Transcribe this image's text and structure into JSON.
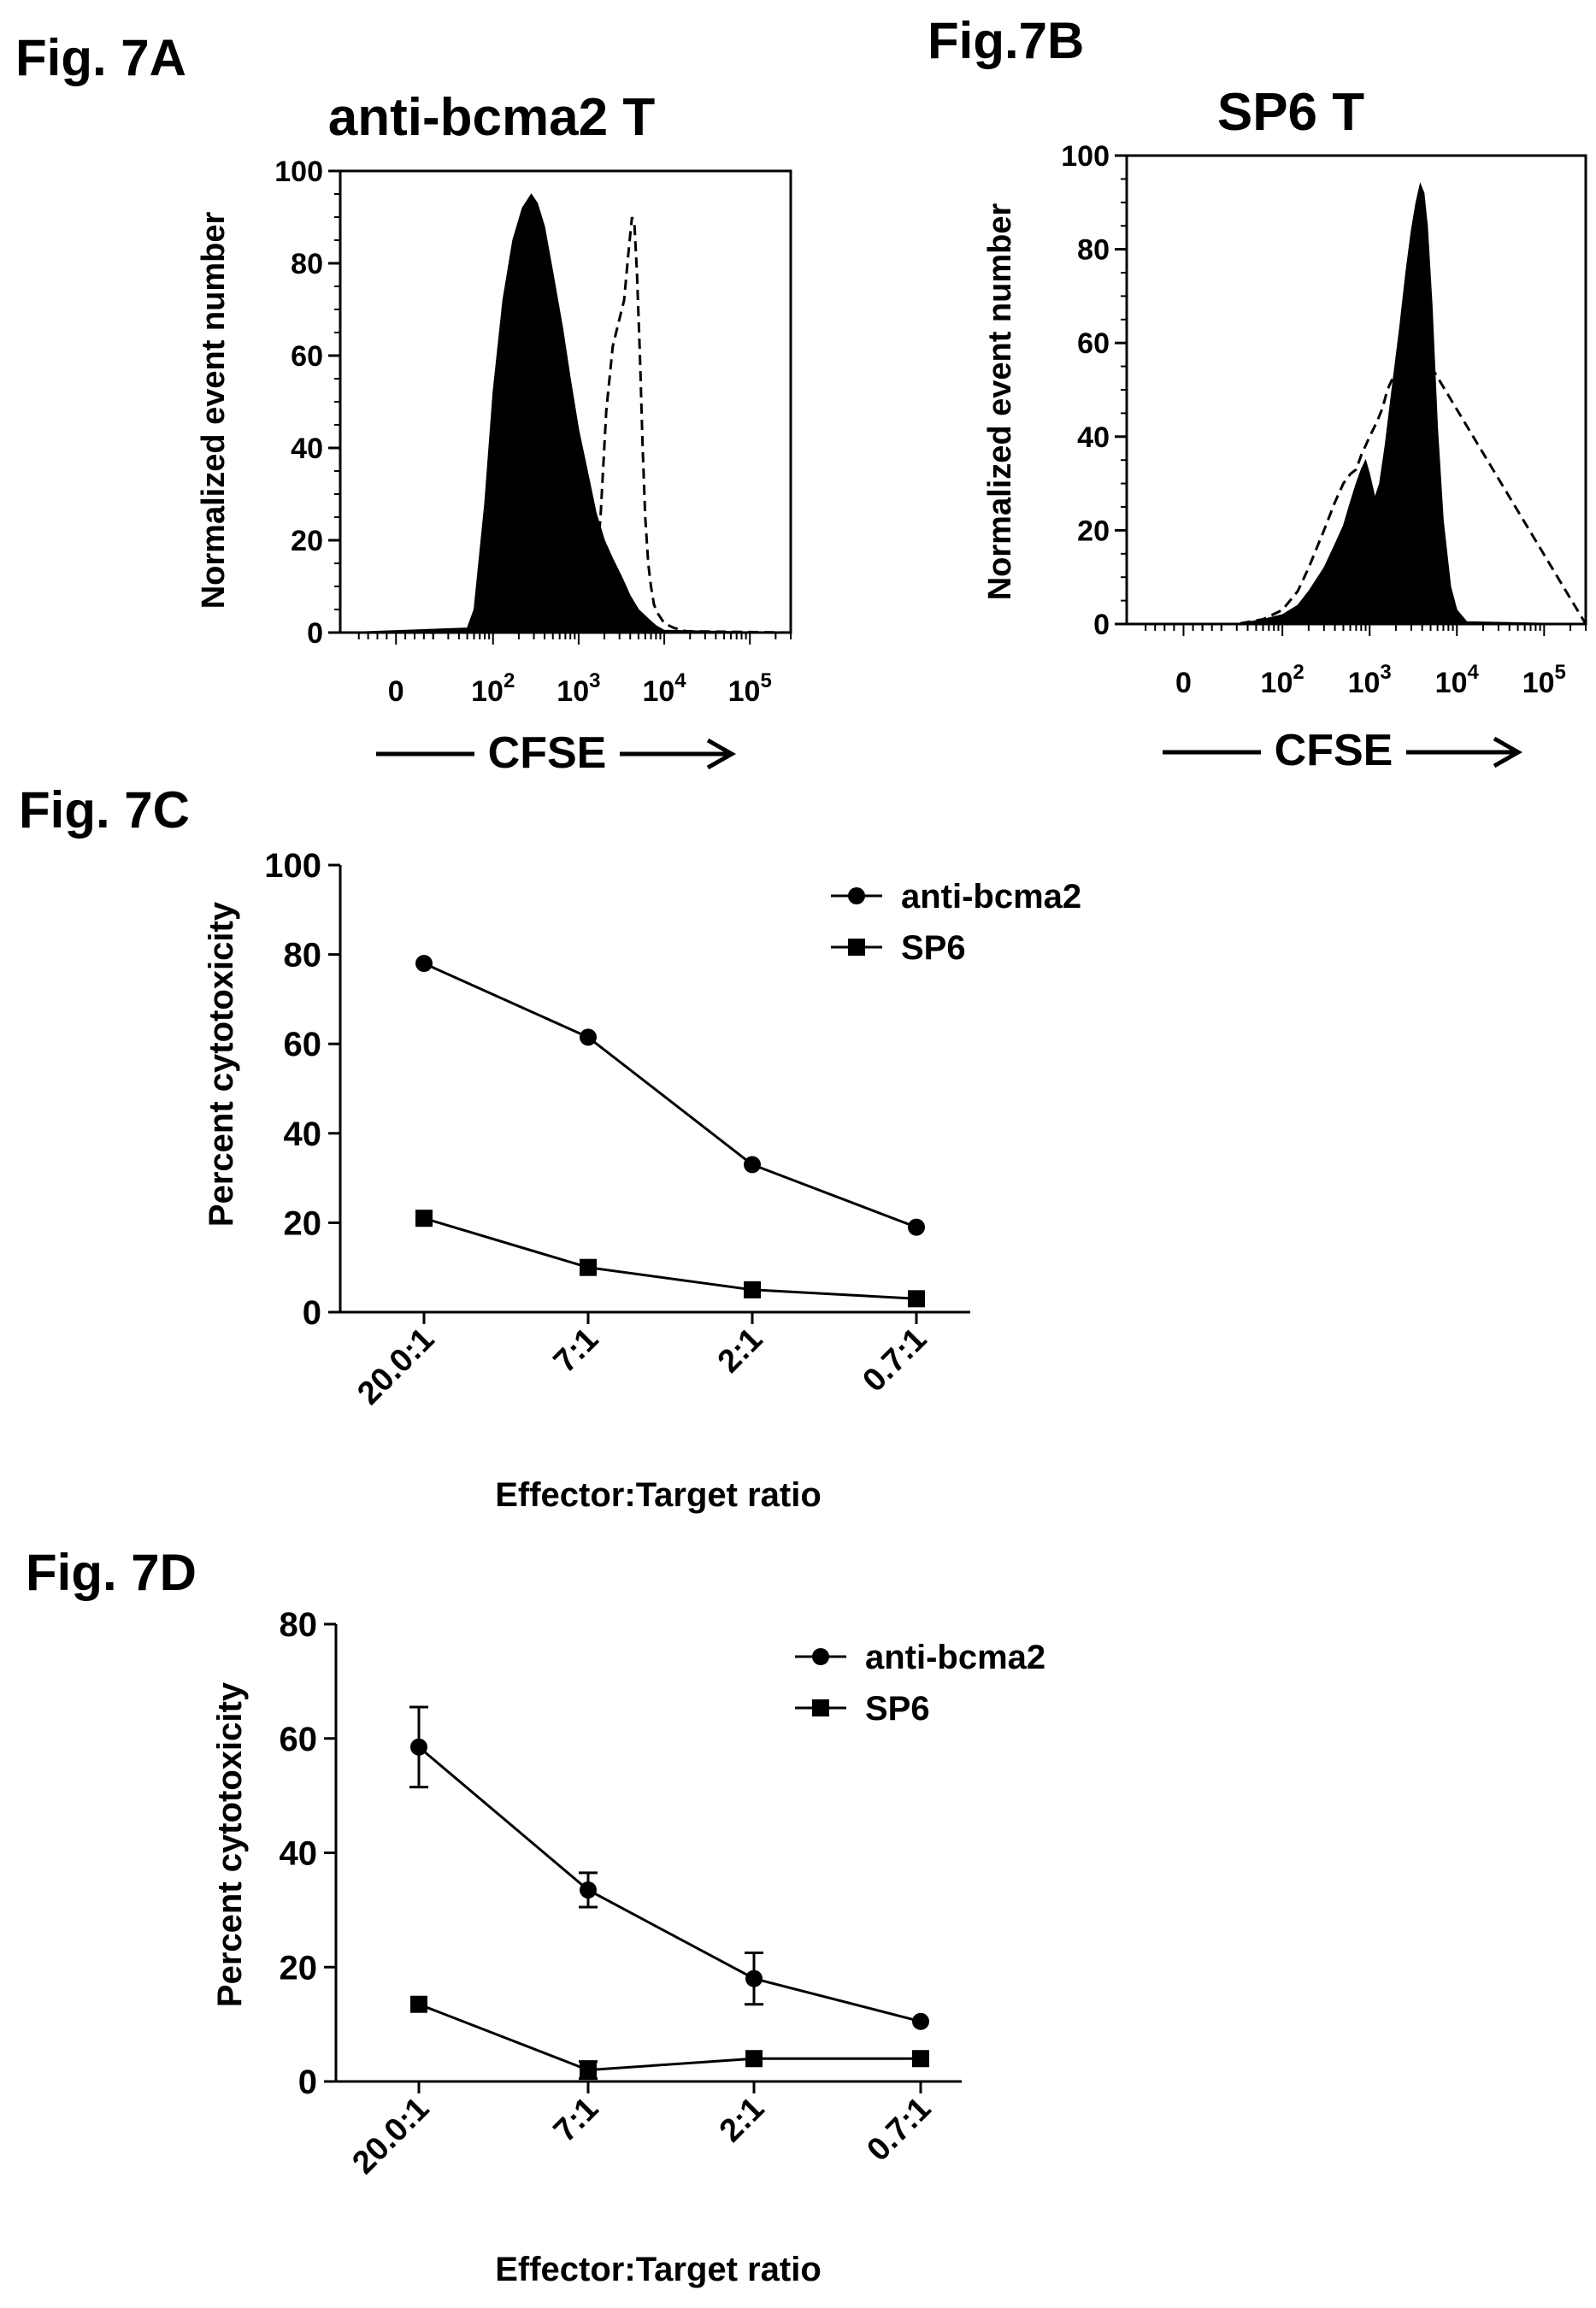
{
  "panels": [
    {
      "label": "Fig. 7A"
    },
    {
      "label": "Fig.7B"
    },
    {
      "label": "Fig. 7C"
    },
    {
      "label": "Fig. 7D"
    }
  ],
  "colors": {
    "ink": "#000000",
    "background": "#ffffff"
  },
  "chart_data": [
    {
      "id": "A",
      "type": "area",
      "title": "anti-bcma2 T",
      "xlabel": "CFSE",
      "ylabel": "Normalized event number",
      "ylim": [
        0,
        100
      ],
      "yticks": [
        0,
        20,
        40,
        60,
        80,
        100
      ],
      "xscale": "log",
      "xticks": [
        {
          "value": 0,
          "label": "0"
        },
        {
          "value": 100,
          "base": "10",
          "exp": "2"
        },
        {
          "value": 1000,
          "base": "10",
          "exp": "3"
        },
        {
          "value": 10000,
          "base": "10",
          "exp": "4"
        },
        {
          "value": 100000,
          "base": "10",
          "exp": "5"
        }
      ],
      "xlim": [
        -30,
        300000
      ],
      "series": [
        {
          "style": "filled",
          "color": "#000000",
          "x": [
            -30,
            50,
            60,
            80,
            100,
            130,
            170,
            220,
            280,
            330,
            400,
            500,
            650,
            800,
            1000,
            1300,
            1600,
            2000,
            2500,
            3200,
            4000,
            5000,
            6500,
            8000,
            10000,
            300000
          ],
          "y": [
            0,
            1,
            5,
            28,
            52,
            72,
            85,
            92,
            95,
            93,
            88,
            78,
            66,
            55,
            44,
            34,
            26,
            20,
            16,
            12,
            8,
            5,
            3,
            1.5,
            0.5,
            0
          ]
        },
        {
          "style": "dashed",
          "color": "#000000",
          "x": [
            -30,
            800,
            1200,
            1500,
            1800,
            2100,
            2500,
            3000,
            3400,
            3800,
            4200,
            4500,
            4800,
            5200,
            5600,
            6000,
            6500,
            7000,
            7600,
            8500,
            10000,
            13000,
            18000,
            300000
          ],
          "y": [
            0,
            0,
            2,
            8,
            25,
            48,
            62,
            68,
            72,
            82,
            90,
            88,
            78,
            60,
            40,
            25,
            15,
            10,
            6,
            4,
            2,
            1,
            0.3,
            0
          ]
        }
      ]
    },
    {
      "id": "B",
      "type": "area",
      "title": "SP6 T",
      "xlabel": "CFSE",
      "ylabel": "Normalized event number",
      "ylim": [
        0,
        100
      ],
      "yticks": [
        0,
        20,
        40,
        60,
        80,
        100
      ],
      "xscale": "log",
      "xticks": [
        {
          "value": 0,
          "label": "0"
        },
        {
          "value": 100,
          "base": "10",
          "exp": "2"
        },
        {
          "value": 1000,
          "base": "10",
          "exp": "3"
        },
        {
          "value": 10000,
          "base": "10",
          "exp": "4"
        },
        {
          "value": 100000,
          "base": "10",
          "exp": "5"
        }
      ],
      "xlim": [
        -30,
        300000
      ],
      "series": [
        {
          "style": "filled",
          "color": "#000000",
          "x": [
            -30,
            30,
            60,
            100,
            150,
            200,
            300,
            400,
            500,
            600,
            700,
            800,
            900,
            1000,
            1150,
            1300,
            1500,
            1800,
            2200,
            2600,
            3000,
            3400,
            3800,
            4200,
            4600,
            5200,
            6000,
            7000,
            8500,
            10000,
            13000,
            300000
          ],
          "y": [
            0,
            0,
            1,
            2,
            4,
            7,
            12,
            17,
            21,
            26,
            30,
            33,
            35,
            32,
            27,
            30,
            38,
            50,
            63,
            75,
            84,
            90,
            94,
            92,
            85,
            68,
            42,
            22,
            8,
            3,
            0.5,
            0
          ]
        },
        {
          "style": "dashed",
          "color": "#000000",
          "x": [
            -30,
            30,
            60,
            100,
            150,
            200,
            300,
            400,
            500,
            600,
            700,
            800,
            1000,
            1200,
            1400,
            1600,
            2000,
            2500,
            3000,
            300000
          ],
          "y": [
            0,
            0,
            1,
            3,
            7,
            12,
            20,
            26,
            30,
            32,
            33,
            36,
            40,
            43,
            46,
            50,
            54,
            58,
            62,
            0
          ]
        }
      ]
    },
    {
      "id": "C",
      "type": "line",
      "xlabel": "Effector:Target ratio",
      "ylabel": "Percent cytotoxicity",
      "categories": [
        "20.0:1",
        "7:1",
        "2:1",
        "0.7:1"
      ],
      "ylim": [
        0,
        100
      ],
      "yticks": [
        0,
        20,
        40,
        60,
        80,
        100
      ],
      "legend": "top-right",
      "series": [
        {
          "name": "anti-bcma2",
          "marker": "circle",
          "values": [
            78,
            61.5,
            33,
            19
          ]
        },
        {
          "name": "SP6",
          "marker": "square",
          "values": [
            21,
            10,
            5,
            3
          ]
        }
      ]
    },
    {
      "id": "D",
      "type": "line",
      "xlabel": "Effector:Target ratio",
      "ylabel": "Percent cytotoxicity",
      "categories": [
        "20.0:1",
        "7:1",
        "2:1",
        "0.7:1"
      ],
      "ylim": [
        0,
        80
      ],
      "yticks": [
        0,
        20,
        40,
        60,
        80
      ],
      "legend": "top-right",
      "series": [
        {
          "name": "anti-bcma2",
          "marker": "circle",
          "values": [
            58.5,
            33.5,
            18,
            10.5
          ],
          "errors": [
            7,
            3,
            4.5,
            0.5
          ]
        },
        {
          "name": "SP6",
          "marker": "square",
          "values": [
            13.5,
            2,
            4,
            4
          ],
          "errors": [
            0.5,
            1.5,
            0.5,
            0.5
          ]
        }
      ]
    }
  ]
}
